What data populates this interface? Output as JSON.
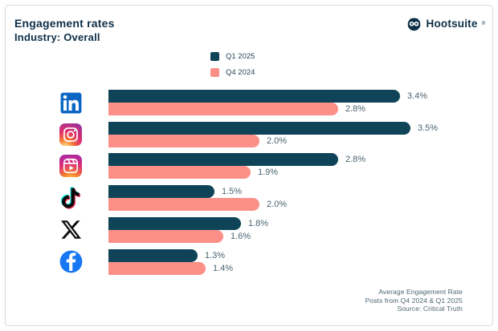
{
  "header": {
    "title": "Engagement rates",
    "subtitle": "Industry: Overall"
  },
  "brand": {
    "name": "Hootsuite",
    "registered_mark": "®"
  },
  "chart_data": {
    "type": "bar",
    "orientation": "horizontal",
    "title": "Engagement rates",
    "subtitle": "Industry: Overall",
    "categories": [
      "LinkedIn",
      "Instagram",
      "Instagram Reels",
      "TikTok",
      "X",
      "Facebook"
    ],
    "category_icons": [
      "linkedin-icon",
      "instagram-icon",
      "instagram-reels-icon",
      "tiktok-icon",
      "x-icon",
      "facebook-icon"
    ],
    "series": [
      {
        "name": "Q1 2025",
        "color": "#0f4458",
        "values": [
          3.4,
          3.5,
          2.8,
          1.5,
          1.8,
          1.3
        ]
      },
      {
        "name": "Q4 2024",
        "color": "#fc9089",
        "values": [
          2.8,
          2.0,
          1.9,
          2.0,
          1.6,
          1.4
        ]
      }
    ],
    "value_suffix": "%",
    "xlim": [
      0,
      3.5
    ],
    "legend_position": "top-center",
    "grid": false
  },
  "footer": {
    "lines": [
      "Average Engagement Rate",
      "Posts from Q4 2024 & Q1 2025",
      "Source: Critical Truth"
    ]
  }
}
